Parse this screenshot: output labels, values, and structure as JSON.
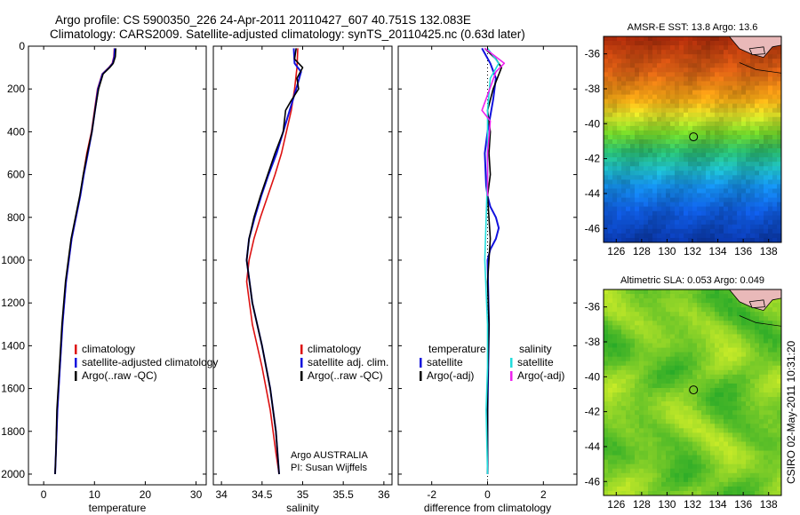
{
  "header": {
    "line1": "Argo profile: CS 5900350_226 24-Apr-2011 20110427_607 40.751S 132.083E",
    "line2": "Climatology: CARS2009. Satellite-adjusted climatology: synTS_20110425.nc (0.63d later)"
  },
  "side_label": "CSIRO 02-May-2011 10:31:20",
  "colors": {
    "climatology": "#dd1111",
    "satellite": "#1111dd",
    "argo": "#000000",
    "sat_sal": "#22dddd",
    "argo_adj_sal": "#ee22ee"
  },
  "chart_data": [
    {
      "type": "line",
      "xlabel": "temperature",
      "ylabel": "",
      "xlim": [
        -3,
        32
      ],
      "ylim": [
        2050,
        0
      ],
      "xticks": [
        0,
        10,
        20,
        30
      ],
      "yticks": [
        0,
        200,
        400,
        600,
        800,
        1000,
        1200,
        1400,
        1600,
        1800,
        2000
      ],
      "legend": [
        "climatology",
        "satellite-adjusted climatology",
        "Argo(..raw -QC)"
      ],
      "legend_position": "lower-right",
      "series": [
        {
          "name": "climatology",
          "color": "#dd1111",
          "x": [
            13.9,
            13.8,
            13.5,
            12.8,
            11.5,
            10.6,
            10.0,
            9.4,
            8.5,
            7.8,
            7.2,
            5.5,
            4.4,
            3.7,
            3.2,
            2.7,
            2.4,
            2.25
          ],
          "y": [
            10,
            50,
            80,
            100,
            130,
            200,
            300,
            400,
            500,
            600,
            700,
            900,
            1100,
            1300,
            1500,
            1700,
            1900,
            2000
          ]
        },
        {
          "name": "satellite-adjusted climatology",
          "color": "#1111dd",
          "x": [
            14.0,
            13.9,
            13.6,
            12.9,
            11.6,
            10.7,
            10.1,
            9.5,
            8.7,
            7.9,
            7.2,
            5.5,
            4.4,
            3.7,
            3.2,
            2.7,
            2.4,
            2.25
          ],
          "y": [
            10,
            50,
            80,
            100,
            130,
            200,
            300,
            400,
            500,
            600,
            700,
            900,
            1100,
            1300,
            1500,
            1700,
            1900,
            2000
          ]
        },
        {
          "name": "Argo(..raw -QC)",
          "color": "#000000",
          "x": [
            14.2,
            14.1,
            13.7,
            13.0,
            11.7,
            10.8,
            10.1,
            9.5,
            8.6,
            7.8,
            7.1,
            5.4,
            4.3,
            3.6,
            3.1,
            2.6,
            2.4,
            2.25
          ],
          "y": [
            10,
            50,
            80,
            100,
            130,
            200,
            300,
            400,
            500,
            600,
            700,
            900,
            1100,
            1300,
            1500,
            1700,
            1900,
            2000
          ]
        }
      ]
    },
    {
      "type": "line",
      "xlabel": "salinity",
      "ylabel": "",
      "xlim": [
        33.9,
        36.1
      ],
      "ylim": [
        2050,
        0
      ],
      "xticks": [
        34,
        34.5,
        35,
        35.5,
        36
      ],
      "yticks": [],
      "legend": [
        "climatology",
        "satellite adj. clim.",
        "Argo(..raw -QC)"
      ],
      "legend_position": "lower-right",
      "annotation": [
        "Argo AUSTRALIA",
        "PI: Susan Wijffels"
      ],
      "series": [
        {
          "name": "climatology",
          "color": "#dd1111",
          "x": [
            34.94,
            34.93,
            34.9,
            34.86,
            34.8,
            34.74,
            34.66,
            34.57,
            34.48,
            34.4,
            34.34,
            34.31,
            34.38,
            34.5,
            34.6,
            34.67,
            34.71
          ],
          "y": [
            10,
            100,
            200,
            300,
            400,
            500,
            600,
            700,
            800,
            900,
            1000,
            1100,
            1300,
            1500,
            1700,
            1900,
            2000
          ]
        },
        {
          "name": "satellite adj. clim.",
          "color": "#1111dd",
          "x": [
            34.89,
            34.9,
            34.98,
            34.92,
            34.84,
            34.76,
            34.68,
            34.58,
            34.49,
            34.41,
            34.34,
            34.31,
            34.38,
            34.5,
            34.6,
            34.67,
            34.71
          ],
          "y": [
            10,
            80,
            120,
            200,
            300,
            400,
            500,
            600,
            700,
            800,
            900,
            1000,
            1200,
            1400,
            1600,
            1800,
            2000
          ]
        },
        {
          "name": "Argo(..raw -QC)",
          "color": "#000000",
          "x": [
            34.92,
            34.9,
            35.0,
            34.93,
            34.95,
            34.85,
            34.79,
            34.76,
            34.66,
            34.57,
            34.48,
            34.4,
            34.34,
            34.31,
            34.38,
            34.5,
            34.6,
            34.67,
            34.71
          ],
          "y": [
            10,
            60,
            100,
            150,
            200,
            260,
            300,
            400,
            500,
            600,
            700,
            800,
            900,
            1000,
            1200,
            1400,
            1600,
            1800,
            2000
          ]
        }
      ]
    },
    {
      "type": "line",
      "xlabel": "difference from climatology",
      "ylabel": "",
      "xlim": [
        -3.2,
        3.2
      ],
      "ylim": [
        2050,
        0
      ],
      "xticks": [
        -2,
        0,
        2
      ],
      "yticks": [],
      "legend": [
        "temperature",
        "satellite",
        "Argo(-adj)",
        "salinity",
        "satellite",
        "Argo(-adj)"
      ],
      "legend_position": "lower",
      "series": [
        {
          "name": "satellite",
          "color": "#1111dd",
          "x": [
            -0.2,
            0.1,
            0.3,
            0.2,
            0.0,
            -0.1,
            -0.05,
            0.0,
            0.1,
            0.3,
            0.4,
            0.3,
            0.1,
            0.0,
            0.05,
            0.0,
            0.0
          ],
          "y": [
            10,
            80,
            150,
            250,
            400,
            500,
            650,
            700,
            750,
            800,
            850,
            900,
            950,
            1000,
            1300,
            1700,
            2000
          ]
        },
        {
          "name": "Argo(-adj)",
          "color": "#000000",
          "x": [
            -0.1,
            0.3,
            0.5,
            0.2,
            0.0,
            0.1,
            0.05,
            0.1,
            0.0,
            0.1,
            0.0,
            0.05,
            0.0,
            0.0
          ],
          "y": [
            10,
            60,
            100,
            200,
            300,
            400,
            500,
            600,
            700,
            900,
            1100,
            1300,
            1600,
            2000
          ]
        },
        {
          "name": "satellite",
          "color": "#22dddd",
          "x": [
            0.0,
            0.4,
            0.1,
            0.0,
            0.0,
            -0.1,
            0.0,
            0.0,
            -0.05,
            0.0
          ],
          "y": [
            10,
            80,
            150,
            300,
            600,
            1000,
            1300,
            1500,
            1700,
            2000
          ]
        },
        {
          "name": "Argo(-adj)",
          "color": "#ee22ee",
          "x": [
            -0.1,
            0.6,
            0.3,
            -0.2,
            0.1,
            0.0,
            0.0
          ],
          "y": [
            10,
            80,
            120,
            300,
            350,
            500,
            700
          ]
        }
      ]
    }
  ],
  "maps": [
    {
      "title": "AMSR-E SST: 13.8 Argo: 13.6",
      "xticks": [
        "126",
        "128",
        "130",
        "132",
        "134",
        "136",
        "138"
      ],
      "yticks": [
        "-36",
        "-38",
        "-40",
        "-42",
        "-44",
        "-46"
      ],
      "lon_range": [
        125,
        139
      ],
      "lat_range": [
        -46.8,
        -35
      ],
      "marker": {
        "lon": 132.083,
        "lat": -40.751
      },
      "colorscheme": "sst"
    },
    {
      "title": "Altimetric SLA: 0.053 Argo: 0.049",
      "xticks": [
        "126",
        "128",
        "130",
        "132",
        "134",
        "136",
        "138"
      ],
      "yticks": [
        "-36",
        "-38",
        "-40",
        "-42",
        "-44",
        "-46"
      ],
      "lon_range": [
        125,
        139
      ],
      "lat_range": [
        -46.8,
        -35
      ],
      "marker": {
        "lon": 132.083,
        "lat": -40.751
      },
      "colorscheme": "sla"
    }
  ]
}
